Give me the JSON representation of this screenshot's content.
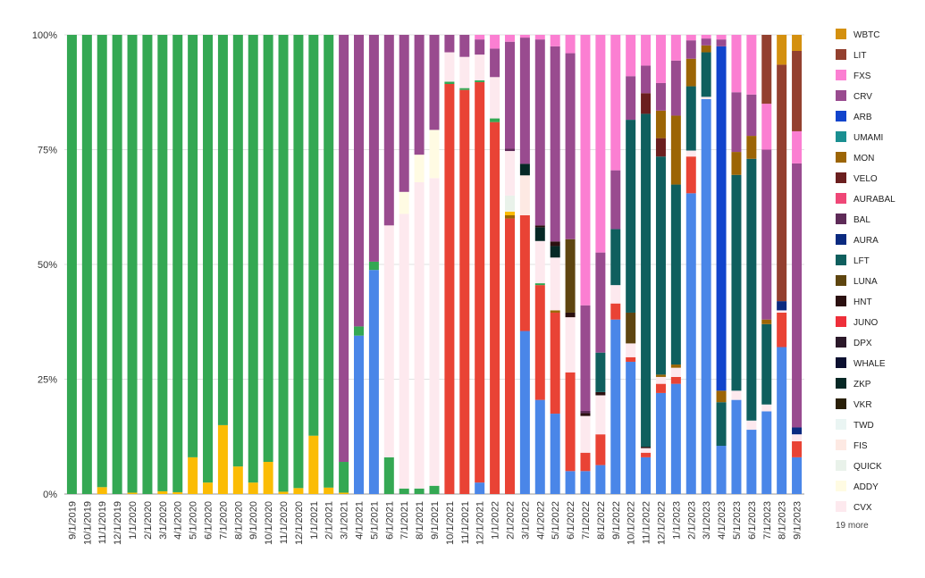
{
  "chart_data": {
    "type": "bar",
    "stacked": true,
    "normalized": true,
    "categories": [
      "9/1/2019",
      "10/1/2019",
      "11/1/2019",
      "12/1/2019",
      "1/1/2020",
      "2/1/2020",
      "3/1/2020",
      "4/1/2020",
      "5/1/2020",
      "6/1/2020",
      "7/1/2020",
      "8/1/2020",
      "9/1/2020",
      "10/1/2020",
      "11/1/2020",
      "12/1/2020",
      "1/1/2021",
      "2/1/2021",
      "3/1/2021",
      "4/1/2021",
      "5/1/2021",
      "6/1/2021",
      "7/1/2021",
      "8/1/2021",
      "9/1/2021",
      "10/1/2021",
      "11/1/2021",
      "12/1/2021",
      "1/1/2022",
      "2/1/2022",
      "3/1/2022",
      "4/1/2022",
      "5/1/2022",
      "6/1/2022",
      "7/1/2022",
      "8/1/2022",
      "9/1/2022",
      "10/1/2022",
      "11/1/2022",
      "12/1/2022",
      "1/1/2023",
      "2/1/2023",
      "3/1/2023",
      "4/1/2023",
      "5/1/2023",
      "6/1/2023",
      "7/1/2023",
      "8/1/2023",
      "9/1/2023"
    ],
    "yticks": [
      "0%",
      "25%",
      "50%",
      "75%",
      "100%"
    ],
    "ylim": [
      0,
      100
    ],
    "legend_position": "right",
    "legend_more": "19 more",
    "legend": [
      {
        "name": "WBTC",
        "color": "#d4900f"
      },
      {
        "name": "LIT",
        "color": "#93402f"
      },
      {
        "name": "FXS",
        "color": "#fb7fd2"
      },
      {
        "name": "CRV",
        "color": "#994b8f"
      },
      {
        "name": "ARB",
        "color": "#1144cc"
      },
      {
        "name": "UMAMI",
        "color": "#1a8f91"
      },
      {
        "name": "MON",
        "color": "#9c6505"
      },
      {
        "name": "VELO",
        "color": "#6b1f1f"
      },
      {
        "name": "AURABAL",
        "color": "#ef4777"
      },
      {
        "name": "BAL",
        "color": "#5e2b58"
      },
      {
        "name": "AURA",
        "color": "#0a2a80"
      },
      {
        "name": "LFT",
        "color": "#0f5f5e"
      },
      {
        "name": "LUNA",
        "color": "#5e4510"
      },
      {
        "name": "HNT",
        "color": "#2b1010"
      },
      {
        "name": "JUNO",
        "color": "#ee2f3a"
      },
      {
        "name": "DPX",
        "color": "#2b1829"
      },
      {
        "name": "WHALE",
        "color": "#0b1030"
      },
      {
        "name": "ZKP",
        "color": "#062825"
      },
      {
        "name": "VKR",
        "color": "#2a2008"
      },
      {
        "name": "TWD",
        "color": "#eaf5f3"
      },
      {
        "name": "FIS",
        "color": "#fde9e3"
      },
      {
        "name": "QUICK",
        "color": "#e9f2ea"
      },
      {
        "name": "ADDY",
        "color": "#fffbe3"
      },
      {
        "name": "CVX",
        "color": "#fde9ee"
      }
    ],
    "other_series_colors": {
      "green": "#34a853",
      "yellow": "#fbbc04",
      "blue": "#4a86e8",
      "red": "#e94335"
    },
    "stacks": [
      [
        [
          "#34a853",
          100
        ]
      ],
      [
        [
          "#34a853",
          100
        ]
      ],
      [
        [
          "#fbbc04",
          1.5
        ],
        [
          "#34a853",
          98.5
        ]
      ],
      [
        [
          "#34a853",
          100
        ]
      ],
      [
        [
          "#fbbc04",
          0.3
        ],
        [
          "#34a853",
          99.7
        ]
      ],
      [
        [
          "#34a853",
          100
        ]
      ],
      [
        [
          "#fbbc04",
          0.6
        ],
        [
          "#34a853",
          99.4
        ]
      ],
      [
        [
          "#fbbc04",
          0.4
        ],
        [
          "#34a853",
          99.6
        ]
      ],
      [
        [
          "#fbbc04",
          8
        ],
        [
          "#34a853",
          92
        ]
      ],
      [
        [
          "#fbbc04",
          2.5
        ],
        [
          "#34a853",
          97.5
        ]
      ],
      [
        [
          "#fbbc04",
          15
        ],
        [
          "#34a853",
          85
        ]
      ],
      [
        [
          "#fbbc04",
          6
        ],
        [
          "#34a853",
          94
        ]
      ],
      [
        [
          "#fbbc04",
          2.5
        ],
        [
          "#34a853",
          97.5
        ]
      ],
      [
        [
          "#fbbc04",
          7
        ],
        [
          "#34a853",
          93
        ]
      ],
      [
        [
          "#fbbc04",
          0.5
        ],
        [
          "#34a853",
          99.5
        ]
      ],
      [
        [
          "#fbbc04",
          1.3
        ],
        [
          "#34a853",
          98.7
        ]
      ],
      [
        [
          "#fbbc04",
          12.7
        ],
        [
          "#34a853",
          87.3
        ]
      ],
      [
        [
          "#fbbc04",
          1.4
        ],
        [
          "#34a853",
          98.6
        ]
      ],
      [
        [
          "#fbbc04",
          0.3
        ],
        [
          "#34a853",
          6.7
        ],
        [
          "#994b8f",
          93
        ]
      ],
      [
        [
          "#4a86e8",
          34.5
        ],
        [
          "#34a853",
          2
        ],
        [
          "#994b8f",
          63.5
        ]
      ],
      [
        [
          "#4a86e8",
          48.8
        ],
        [
          "#34a853",
          1.8
        ],
        [
          "#994b8f",
          49.4
        ]
      ],
      [
        [
          "#34a853",
          8
        ],
        [
          "#fde9ee",
          50.5
        ],
        [
          "#994b8f",
          41.5
        ]
      ],
      [
        [
          "#34a853",
          1.2
        ],
        [
          "#fde9ee",
          59.8
        ],
        [
          "#fffbe3",
          4.8
        ],
        [
          "#994b8f",
          34.2
        ]
      ],
      [
        [
          "#34a853",
          1.2
        ],
        [
          "#fde9ee",
          66.7
        ],
        [
          "#fffbe3",
          6
        ],
        [
          "#994b8f",
          26.1
        ]
      ],
      [
        [
          "#34a853",
          1.8
        ],
        [
          "#fde9ee",
          67
        ],
        [
          "#fffbe3",
          10.5
        ],
        [
          "#994b8f",
          20.7
        ]
      ],
      [
        [
          "#e94335",
          89.3
        ],
        [
          "#34a853",
          0.5
        ],
        [
          "#fde9ee",
          6.4
        ],
        [
          "#994b8f",
          3.8
        ]
      ],
      [
        [
          "#e94335",
          88
        ],
        [
          "#34a853",
          0.4
        ],
        [
          "#fde9ee",
          6.8
        ],
        [
          "#994b8f",
          4.8
        ]
      ],
      [
        [
          "#4a86e8",
          2.5
        ],
        [
          "#e94335",
          87.2
        ],
        [
          "#34a853",
          0.4
        ],
        [
          "#fde9ee",
          5.6
        ],
        [
          "#994b8f",
          3.3
        ],
        [
          "#fb7fd2",
          1
        ]
      ],
      [
        [
          "#e94335",
          81
        ],
        [
          "#34a853",
          0.8
        ],
        [
          "#fde9ee",
          9
        ],
        [
          "#994b8f",
          6.2
        ],
        [
          "#fb7fd2",
          3
        ]
      ],
      [
        [
          "#e94335",
          60
        ],
        [
          "#9c6505",
          0.7
        ],
        [
          "#fbbc04",
          0.8
        ],
        [
          "#e9f2ea",
          3.5
        ],
        [
          "#fde9ee",
          9.7
        ],
        [
          "#5e2b58",
          0.5
        ],
        [
          "#994b8f",
          23.3
        ],
        [
          "#fb7fd2",
          1.5
        ]
      ],
      [
        [
          "#4a86e8",
          35.5
        ],
        [
          "#e94335",
          25.2
        ],
        [
          "#fde9e3",
          8.7
        ],
        [
          "#062825",
          2.5
        ],
        [
          "#994b8f",
          27.5
        ],
        [
          "#fb7fd2",
          0.6
        ]
      ],
      [
        [
          "#4a86e8",
          20.5
        ],
        [
          "#e94335",
          25
        ],
        [
          "#34a853",
          0.4
        ],
        [
          "#fde9ee",
          9.2
        ],
        [
          "#062825",
          3
        ],
        [
          "#2b1010",
          0.4
        ],
        [
          "#994b8f",
          40.5
        ],
        [
          "#fb7fd2",
          1
        ]
      ],
      [
        [
          "#4a86e8",
          17.5
        ],
        [
          "#e94335",
          22
        ],
        [
          "#9c6505",
          0.5
        ],
        [
          "#fde9ee",
          11.5
        ],
        [
          "#062825",
          2.5
        ],
        [
          "#2b1010",
          1
        ],
        [
          "#994b8f",
          42.5
        ],
        [
          "#fb7fd2",
          2.5
        ]
      ],
      [
        [
          "#4a86e8",
          5
        ],
        [
          "#e94335",
          21.5
        ],
        [
          "#fde9ee",
          12
        ],
        [
          "#2b1010",
          1
        ],
        [
          "#5e4510",
          16
        ],
        [
          "#994b8f",
          40.5
        ],
        [
          "#fb7fd2",
          4
        ]
      ],
      [
        [
          "#4a86e8",
          5
        ],
        [
          "#e94335",
          4
        ],
        [
          "#fde9ee",
          8
        ],
        [
          "#2b1010",
          0.6
        ],
        [
          "#5e2b58",
          0.5
        ],
        [
          "#994b8f",
          23
        ],
        [
          "#fb7fd2",
          58.9
        ]
      ],
      [
        [
          "#4a86e8",
          6.3
        ],
        [
          "#e94335",
          6.7
        ],
        [
          "#fde9ee",
          8.5
        ],
        [
          "#2b1010",
          0.7
        ],
        [
          "#0f5f5e",
          8.6
        ],
        [
          "#994b8f",
          21.8
        ],
        [
          "#fb7fd2",
          47.4
        ]
      ],
      [
        [
          "#4a86e8",
          38
        ],
        [
          "#e94335",
          3.5
        ],
        [
          "#fde9ee",
          4
        ],
        [
          "#0f5f5e",
          12.2
        ],
        [
          "#994b8f",
          12.8
        ],
        [
          "#fb7fd2",
          29.5
        ]
      ],
      [
        [
          "#4a86e8",
          28.8
        ],
        [
          "#e94335",
          1
        ],
        [
          "#fde9ee",
          3
        ],
        [
          "#5e4510",
          6.7
        ],
        [
          "#0f5f5e",
          42
        ],
        [
          "#994b8f",
          9.5
        ],
        [
          "#fb7fd2",
          9
        ]
      ],
      [
        [
          "#4a86e8",
          8
        ],
        [
          "#e94335",
          1
        ],
        [
          "#fde9ee",
          1
        ],
        [
          "#2b1010",
          0.3
        ],
        [
          "#0f5f5e",
          72.5
        ],
        [
          "#6b1f1f",
          4.5
        ],
        [
          "#994b8f",
          6
        ],
        [
          "#fb7fd2",
          6.7
        ]
      ],
      [
        [
          "#4a86e8",
          22
        ],
        [
          "#e94335",
          2
        ],
        [
          "#fde9ee",
          1.5
        ],
        [
          "#9c6505",
          0.5
        ],
        [
          "#0f5f5e",
          47.5
        ],
        [
          "#6b1f1f",
          4
        ],
        [
          "#9c6505",
          6
        ],
        [
          "#994b8f",
          6
        ],
        [
          "#fb7fd2",
          10.5
        ]
      ],
      [
        [
          "#4a86e8",
          24
        ],
        [
          "#e94335",
          1.5
        ],
        [
          "#fde9ee",
          2
        ],
        [
          "#9c6505",
          0.7
        ],
        [
          "#0f5f5e",
          39.2
        ],
        [
          "#9c6505",
          15
        ],
        [
          "#994b8f",
          12
        ],
        [
          "#fb7fd2",
          5.6
        ]
      ],
      [
        [
          "#4a86e8",
          65.5
        ],
        [
          "#e94335",
          8
        ],
        [
          "#fde9ee",
          1.3
        ],
        [
          "#0f5f5e",
          14
        ],
        [
          "#9c6505",
          6
        ],
        [
          "#994b8f",
          4
        ],
        [
          "#fb7fd2",
          1.2
        ]
      ],
      [
        [
          "#4a86e8",
          86
        ],
        [
          "#fde9ee",
          0.5
        ],
        [
          "#0f5f5e",
          9.7
        ],
        [
          "#9c6505",
          1.5
        ],
        [
          "#994b8f",
          1.5
        ],
        [
          "#fb7fd2",
          0.8
        ]
      ],
      [
        [
          "#4a86e8",
          10.5
        ],
        [
          "#0f5f5e",
          9.5
        ],
        [
          "#9c6505",
          2.5
        ],
        [
          "#1144cc",
          75
        ],
        [
          "#994b8f",
          1.5
        ],
        [
          "#fb7fd2",
          1
        ]
      ],
      [
        [
          "#4a86e8",
          20.5
        ],
        [
          "#fde9ee",
          2
        ],
        [
          "#0f5f5e",
          47
        ],
        [
          "#9c6505",
          5
        ],
        [
          "#994b8f",
          13
        ],
        [
          "#fb7fd2",
          12.5
        ]
      ],
      [
        [
          "#4a86e8",
          14
        ],
        [
          "#fde9ee",
          2
        ],
        [
          "#0f5f5e",
          57
        ],
        [
          "#9c6505",
          5
        ],
        [
          "#994b8f",
          9
        ],
        [
          "#fb7fd2",
          13
        ]
      ],
      [
        [
          "#4a86e8",
          18
        ],
        [
          "#fde9ee",
          1.5
        ],
        [
          "#0f5f5e",
          17.5
        ],
        [
          "#9c6505",
          1
        ],
        [
          "#994b8f",
          37
        ],
        [
          "#fb7fd2",
          10
        ],
        [
          "#93402f",
          15
        ]
      ],
      [
        [
          "#4a86e8",
          32
        ],
        [
          "#e94335",
          7.5
        ],
        [
          "#fde9ee",
          0.5
        ],
        [
          "#0a2a80",
          2
        ],
        [
          "#93402f",
          51.5
        ],
        [
          "#d4900f",
          6.5
        ]
      ],
      [
        [
          "#4a86e8",
          8
        ],
        [
          "#e94335",
          3.5
        ],
        [
          "#fde9ee",
          1.5
        ],
        [
          "#0a2a80",
          1.5
        ],
        [
          "#994b8f",
          57.5
        ],
        [
          "#fb7fd2",
          7
        ],
        [
          "#93402f",
          17.5
        ],
        [
          "#d4900f",
          3.5
        ]
      ]
    ]
  }
}
